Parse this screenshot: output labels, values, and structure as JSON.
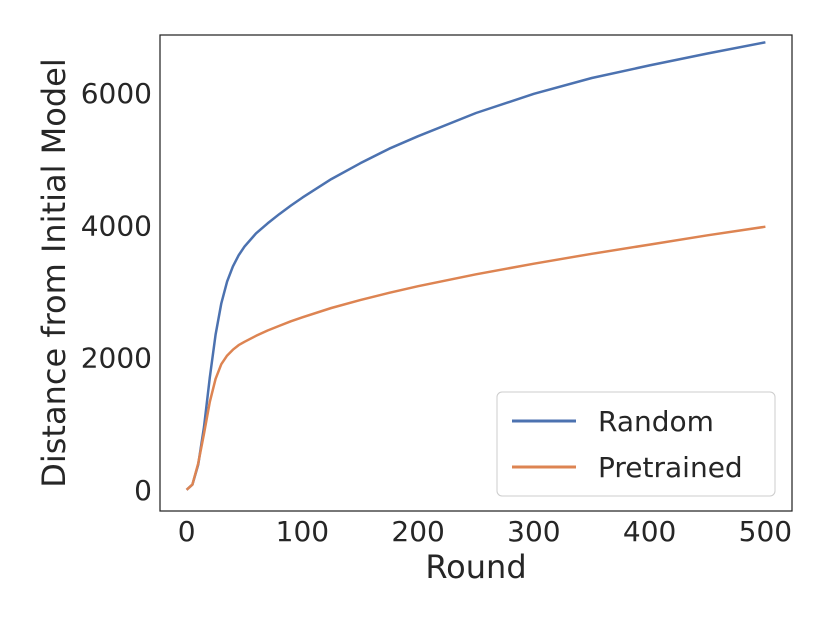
{
  "chart_data": {
    "type": "line",
    "xlabel": "Round",
    "ylabel": "Distance from Initial Model",
    "xlim": [
      -23,
      523
    ],
    "ylim": [
      -320,
      6880
    ],
    "xticks": [
      0,
      100,
      200,
      300,
      400,
      500
    ],
    "yticks": [
      0,
      2000,
      4000,
      6000
    ],
    "grid": false,
    "legend_position": "lower-right",
    "series": [
      {
        "name": "Random",
        "color": "#4c72b0",
        "x": [
          0,
          5,
          10,
          15,
          20,
          25,
          30,
          35,
          40,
          45,
          50,
          60,
          70,
          80,
          90,
          100,
          125,
          150,
          175,
          200,
          250,
          300,
          350,
          400,
          450,
          500
        ],
        "y": [
          0,
          80,
          380,
          950,
          1700,
          2350,
          2820,
          3150,
          3380,
          3550,
          3680,
          3880,
          4030,
          4170,
          4300,
          4420,
          4700,
          4940,
          5160,
          5350,
          5700,
          5990,
          6230,
          6420,
          6600,
          6770
        ]
      },
      {
        "name": "Pretrained",
        "color": "#dd8452",
        "x": [
          0,
          5,
          10,
          15,
          20,
          25,
          30,
          35,
          40,
          45,
          50,
          60,
          70,
          80,
          90,
          100,
          125,
          150,
          175,
          200,
          250,
          300,
          350,
          400,
          450,
          500
        ],
        "y": [
          0,
          80,
          400,
          850,
          1330,
          1680,
          1900,
          2030,
          2120,
          2190,
          2240,
          2330,
          2410,
          2480,
          2550,
          2610,
          2750,
          2870,
          2980,
          3080,
          3260,
          3420,
          3570,
          3710,
          3850,
          3980
        ]
      }
    ]
  }
}
